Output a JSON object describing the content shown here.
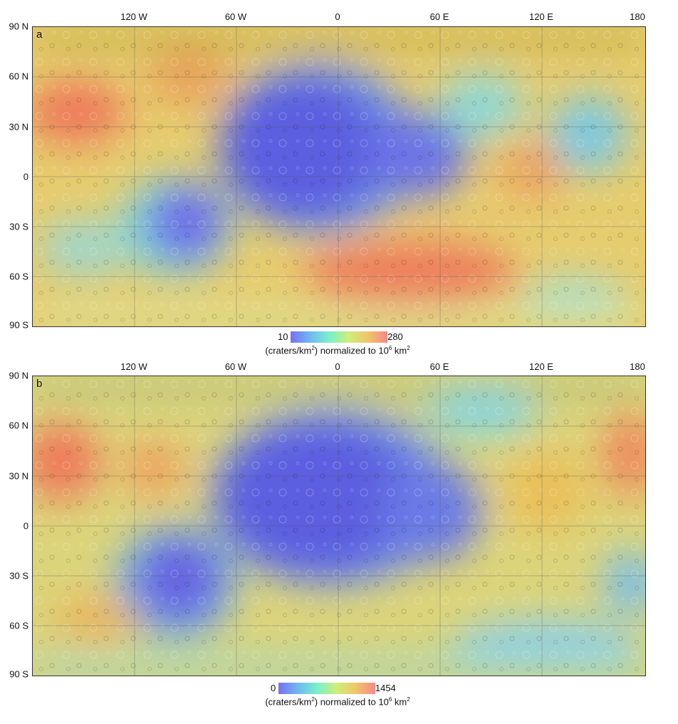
{
  "panels": [
    {
      "letter": "a",
      "lon_labels": [
        "120 W",
        "60 W",
        "0",
        "60 E",
        "120 E",
        "180"
      ],
      "lat_labels": [
        "90 N",
        "60 N",
        "30 N",
        "0",
        "30 S",
        "60 S",
        "90 S"
      ],
      "colorbar": {
        "min": "10",
        "max": "280",
        "unit_text": "(craters/km",
        "unit_sup": "2",
        "norm_text": ") normalized to 10",
        "norm_sup": "6",
        "norm_unit": " km",
        "norm_unit_sup": "2"
      },
      "colors": [
        "#7a6ff0",
        "#6fb8f2",
        "#79f0c8",
        "#cfee7a",
        "#f2c46a",
        "#f5888a"
      ]
    },
    {
      "letter": "b",
      "lon_labels": [
        "120 W",
        "60 W",
        "0",
        "60 E",
        "120 E",
        "180"
      ],
      "lat_labels": [
        "90 N",
        "60 N",
        "30 N",
        "0",
        "30 S",
        "60 S",
        "90 S"
      ],
      "colorbar": {
        "min": "0",
        "max": "1454",
        "unit_text": "(craters/km",
        "unit_sup": "2",
        "norm_text": ") normalized to 10",
        "norm_sup": "6",
        "norm_unit": " km",
        "norm_unit_sup": "2"
      },
      "colors": [
        "#7a6ff0",
        "#6fb8f2",
        "#79f0c8",
        "#cfee7a",
        "#f2c46a",
        "#f5888a"
      ]
    }
  ]
}
